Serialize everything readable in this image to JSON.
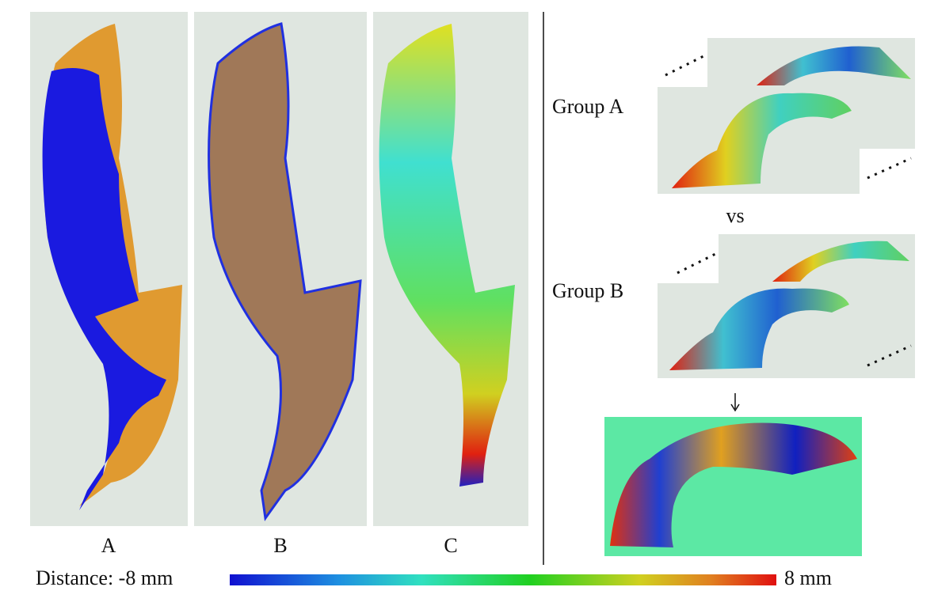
{
  "panels": [
    {
      "label": "A"
    },
    {
      "label": "B"
    },
    {
      "label": "C"
    }
  ],
  "groups": [
    {
      "label": "Group A"
    },
    {
      "label": "Group B"
    }
  ],
  "comparison": "vs",
  "colorbar": {
    "min_label": "Distance: -8 mm",
    "max_label": "8 mm"
  }
}
